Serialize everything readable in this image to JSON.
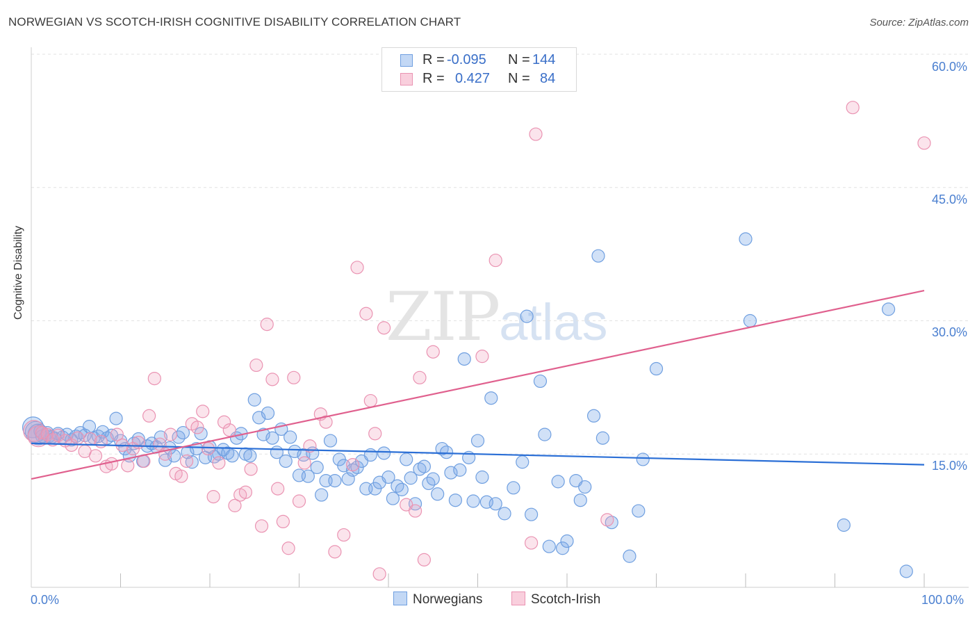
{
  "title": "NORWEGIAN VS SCOTCH-IRISH COGNITIVE DISABILITY CORRELATION CHART",
  "source": "Source: ZipAtlas.com",
  "watermark": {
    "zip": "ZIP",
    "atlas": "atlas"
  },
  "colors": {
    "norwegian": "#7aaae8",
    "norwegian_line": "#2b6fd6",
    "scotch_irish": "#f2a4bf",
    "scotch_irish_line": "#e0608e",
    "tick_text": "#4a7fd0"
  },
  "stats": {
    "rows": [
      {
        "r_label": "R =",
        "r_value": "-0.095",
        "n_label": "N =",
        "n_value": "144"
      },
      {
        "r_label": "R =",
        "r_value": "0.427",
        "n_label": "N =",
        "n_value": "84"
      }
    ]
  },
  "chart_data": {
    "type": "scatter",
    "title": "NORWEGIAN VS SCOTCH-IRISH COGNITIVE DISABILITY CORRELATION CHART",
    "xlabel": "",
    "ylabel": "Cognitive Disability",
    "xlim": [
      0,
      100
    ],
    "ylim": [
      0,
      60
    ],
    "x_tick_labels": [
      "0.0%",
      "100.0%"
    ],
    "y_ticks": [
      15,
      30,
      45,
      60
    ],
    "y_tick_labels": [
      "15.0%",
      "30.0%",
      "45.0%",
      "60.0%"
    ],
    "grid": true,
    "legend_position": "bottom-center",
    "series": [
      {
        "name": "Norwegians",
        "trend": {
          "x": [
            0,
            100
          ],
          "y": [
            16.2,
            13.8
          ]
        },
        "points": [
          [
            0.2,
            18.0
          ],
          [
            0.5,
            17.5
          ],
          [
            0.8,
            17.2
          ],
          [
            1.0,
            17.6
          ],
          [
            1.2,
            17.0
          ],
          [
            1.5,
            16.8
          ],
          [
            1.8,
            17.4
          ],
          [
            2.0,
            17.0
          ],
          [
            2.3,
            16.9
          ],
          [
            2.6,
            16.8
          ],
          [
            3.0,
            17.3
          ],
          [
            3.5,
            16.9
          ],
          [
            4.0,
            17.2
          ],
          [
            4.5,
            16.6
          ],
          [
            5.0,
            17.0
          ],
          [
            5.5,
            17.4
          ],
          [
            6.0,
            17.1
          ],
          [
            6.5,
            18.1
          ],
          [
            7.0,
            16.8
          ],
          [
            7.5,
            17.0
          ],
          [
            8.0,
            17.5
          ],
          [
            8.5,
            16.8
          ],
          [
            9.0,
            17.1
          ],
          [
            9.5,
            19.0
          ],
          [
            10.0,
            16.5
          ],
          [
            10.5,
            15.6
          ],
          [
            11.0,
            14.8
          ],
          [
            11.5,
            16.2
          ],
          [
            12.0,
            16.7
          ],
          [
            12.5,
            14.2
          ],
          [
            13.0,
            15.9
          ],
          [
            13.5,
            16.2
          ],
          [
            14.0,
            15.8
          ],
          [
            14.5,
            16.9
          ],
          [
            15.0,
            14.3
          ],
          [
            15.5,
            15.7
          ],
          [
            16.0,
            14.8
          ],
          [
            16.5,
            16.9
          ],
          [
            17.0,
            17.4
          ],
          [
            17.5,
            15.2
          ],
          [
            18.0,
            14.1
          ],
          [
            18.5,
            15.6
          ],
          [
            19.0,
            17.3
          ],
          [
            19.5,
            14.6
          ],
          [
            20.0,
            15.8
          ],
          [
            20.5,
            14.7
          ],
          [
            21.0,
            15.0
          ],
          [
            21.5,
            15.5
          ],
          [
            22.0,
            15.1
          ],
          [
            22.5,
            14.8
          ],
          [
            23.0,
            16.8
          ],
          [
            23.5,
            17.3
          ],
          [
            24.0,
            15.0
          ],
          [
            24.5,
            14.8
          ],
          [
            25.0,
            21.1
          ],
          [
            25.5,
            19.1
          ],
          [
            26.0,
            17.2
          ],
          [
            26.5,
            19.6
          ],
          [
            27.0,
            16.8
          ],
          [
            27.5,
            15.2
          ],
          [
            28.0,
            17.8
          ],
          [
            28.5,
            14.2
          ],
          [
            29.0,
            16.9
          ],
          [
            29.5,
            15.3
          ],
          [
            30.0,
            12.6
          ],
          [
            30.5,
            14.9
          ],
          [
            31.0,
            12.5
          ],
          [
            31.5,
            15.1
          ],
          [
            32.0,
            13.5
          ],
          [
            32.5,
            10.4
          ],
          [
            33.0,
            12.0
          ],
          [
            33.5,
            16.5
          ],
          [
            34.0,
            12.0
          ],
          [
            34.5,
            14.4
          ],
          [
            35.0,
            13.7
          ],
          [
            35.5,
            12.2
          ],
          [
            36.0,
            13.2
          ],
          [
            36.5,
            13.5
          ],
          [
            37.0,
            14.2
          ],
          [
            37.5,
            11.1
          ],
          [
            38.0,
            14.9
          ],
          [
            38.5,
            11.1
          ],
          [
            39.0,
            11.8
          ],
          [
            39.5,
            15.1
          ],
          [
            40.0,
            12.4
          ],
          [
            40.5,
            10.0
          ],
          [
            41.0,
            11.4
          ],
          [
            41.5,
            11.0
          ],
          [
            42.0,
            14.4
          ],
          [
            42.5,
            12.3
          ],
          [
            43.0,
            9.4
          ],
          [
            43.5,
            13.3
          ],
          [
            44.0,
            13.6
          ],
          [
            44.5,
            11.7
          ],
          [
            45.0,
            12.2
          ],
          [
            45.5,
            10.5
          ],
          [
            46.0,
            15.6
          ],
          [
            46.5,
            15.2
          ],
          [
            47.0,
            12.9
          ],
          [
            47.5,
            9.8
          ],
          [
            48.0,
            13.2
          ],
          [
            48.5,
            25.7
          ],
          [
            49.0,
            14.6
          ],
          [
            49.5,
            9.7
          ],
          [
            50.0,
            16.5
          ],
          [
            50.5,
            12.4
          ],
          [
            51.0,
            9.6
          ],
          [
            51.5,
            21.3
          ],
          [
            52.0,
            9.4
          ],
          [
            53.0,
            8.3
          ],
          [
            54.0,
            11.2
          ],
          [
            55.0,
            14.1
          ],
          [
            55.5,
            30.5
          ],
          [
            56.0,
            8.2
          ],
          [
            57.0,
            23.2
          ],
          [
            57.5,
            17.2
          ],
          [
            58.0,
            4.6
          ],
          [
            59.0,
            11.9
          ],
          [
            59.5,
            4.4
          ],
          [
            60.0,
            5.2
          ],
          [
            61.0,
            12.0
          ],
          [
            61.5,
            9.8
          ],
          [
            62.0,
            11.3
          ],
          [
            63.0,
            19.3
          ],
          [
            63.5,
            37.3
          ],
          [
            64.0,
            16.8
          ],
          [
            65.0,
            7.3
          ],
          [
            67.0,
            3.5
          ],
          [
            68.0,
            8.6
          ],
          [
            68.5,
            14.4
          ],
          [
            70.0,
            24.6
          ],
          [
            80.0,
            39.2
          ],
          [
            80.5,
            30.0
          ],
          [
            91.0,
            7.0
          ],
          [
            96.0,
            31.3
          ],
          [
            98.0,
            1.8
          ]
        ]
      },
      {
        "name": "Scotch-Irish",
        "trend": {
          "x": [
            0,
            100
          ],
          "y": [
            12.2,
            33.4
          ]
        },
        "points": [
          [
            0.3,
            17.6
          ],
          [
            0.8,
            17.0
          ],
          [
            1.2,
            17.4
          ],
          [
            1.8,
            17.2
          ],
          [
            2.4,
            16.6
          ],
          [
            3.0,
            17.1
          ],
          [
            3.8,
            16.5
          ],
          [
            4.5,
            16.0
          ],
          [
            5.2,
            16.8
          ],
          [
            6.0,
            15.3
          ],
          [
            6.6,
            16.7
          ],
          [
            7.2,
            14.8
          ],
          [
            7.8,
            16.4
          ],
          [
            8.4,
            13.6
          ],
          [
            9.0,
            13.9
          ],
          [
            9.6,
            17.2
          ],
          [
            10.2,
            16.0
          ],
          [
            10.8,
            13.7
          ],
          [
            11.4,
            15.6
          ],
          [
            12.0,
            16.3
          ],
          [
            12.6,
            14.2
          ],
          [
            13.2,
            19.3
          ],
          [
            13.8,
            23.5
          ],
          [
            14.4,
            16.1
          ],
          [
            15.0,
            15.0
          ],
          [
            15.6,
            17.2
          ],
          [
            16.2,
            12.8
          ],
          [
            16.8,
            12.5
          ],
          [
            17.4,
            14.2
          ],
          [
            18.0,
            18.4
          ],
          [
            18.6,
            18.0
          ],
          [
            19.2,
            19.8
          ],
          [
            19.8,
            15.6
          ],
          [
            20.4,
            10.2
          ],
          [
            21.0,
            14.0
          ],
          [
            21.6,
            18.6
          ],
          [
            22.2,
            17.7
          ],
          [
            22.8,
            9.2
          ],
          [
            23.4,
            10.4
          ],
          [
            24.0,
            10.7
          ],
          [
            24.6,
            13.3
          ],
          [
            25.2,
            25.0
          ],
          [
            25.8,
            6.9
          ],
          [
            26.4,
            29.6
          ],
          [
            27.0,
            23.4
          ],
          [
            27.6,
            11.1
          ],
          [
            28.2,
            7.4
          ],
          [
            28.8,
            4.4
          ],
          [
            29.4,
            23.6
          ],
          [
            30.0,
            9.7
          ],
          [
            30.6,
            14.0
          ],
          [
            31.2,
            15.9
          ],
          [
            32.4,
            19.5
          ],
          [
            33.0,
            18.6
          ],
          [
            34.0,
            4.0
          ],
          [
            35.0,
            5.9
          ],
          [
            36.0,
            13.8
          ],
          [
            36.5,
            36.0
          ],
          [
            37.5,
            30.8
          ],
          [
            38.0,
            21.0
          ],
          [
            38.5,
            17.3
          ],
          [
            39.0,
            1.5
          ],
          [
            39.5,
            29.2
          ],
          [
            42.0,
            9.3
          ],
          [
            43.0,
            8.6
          ],
          [
            43.5,
            23.6
          ],
          [
            44.0,
            3.1
          ],
          [
            45.0,
            26.5
          ],
          [
            50.5,
            26.0
          ],
          [
            52.0,
            36.8
          ],
          [
            56.0,
            5.0
          ],
          [
            56.5,
            51.0
          ],
          [
            64.5,
            7.6
          ],
          [
            92.0,
            54.0
          ],
          [
            100.0,
            50.0
          ]
        ]
      }
    ]
  }
}
